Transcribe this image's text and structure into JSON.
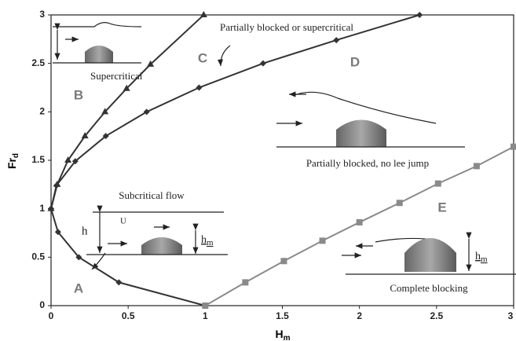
{
  "chart_data": {
    "type": "line",
    "xlabel": {
      "text": "H",
      "subscript": "m"
    },
    "ylabel": {
      "text": "Fr",
      "subscript": "d"
    },
    "xlim": [
      0,
      3
    ],
    "ylim": [
      0,
      3
    ],
    "xticks": [
      0,
      0.5,
      1,
      1.5,
      2,
      2.5,
      3
    ],
    "yticks": [
      0,
      0.5,
      1,
      1.5,
      2,
      2.5,
      3
    ],
    "series": [
      {
        "color": "#333333",
        "marker": "diamond",
        "x": [
          0,
          0.035,
          0.157,
          0.355,
          0.62,
          0.96,
          1.375,
          1.85,
          2.39
        ],
        "values": [
          1,
          1.24,
          1.49,
          1.75,
          2.0,
          2.25,
          2.5,
          2.74,
          3.0
        ]
      },
      {
        "color": "#333333",
        "marker": "diamond",
        "x": [
          0,
          0.045,
          0.18,
          0.44,
          1.0
        ],
        "values": [
          1,
          0.76,
          0.5,
          0.24,
          0
        ]
      },
      {
        "color": "#333333",
        "marker": "triangle",
        "x": [
          0,
          0.04,
          0.11,
          0.22,
          0.35,
          0.49,
          0.645,
          0.99
        ],
        "values": [
          1,
          1.25,
          1.5,
          1.75,
          2.0,
          2.24,
          2.49,
          3.0
        ]
      },
      {
        "color": "#8a8a8a",
        "marker": "square",
        "x": [
          1,
          1.26,
          1.51,
          1.76,
          2.0,
          2.26,
          2.51,
          2.76,
          3.0
        ],
        "values": [
          0,
          0.24,
          0.46,
          0.67,
          0.86,
          1.06,
          1.26,
          1.44,
          1.64
        ]
      }
    ],
    "regions": [
      "A",
      "B",
      "C",
      "D",
      "E"
    ],
    "notes": [
      "Supercritical",
      "Partially blocked or supercritical",
      "Partially blocked, no lee jump",
      "Subcritical flow",
      "Complete blocking",
      "U",
      "h"
    ],
    "hm": {
      "text": "h",
      "subscript": "m"
    }
  }
}
